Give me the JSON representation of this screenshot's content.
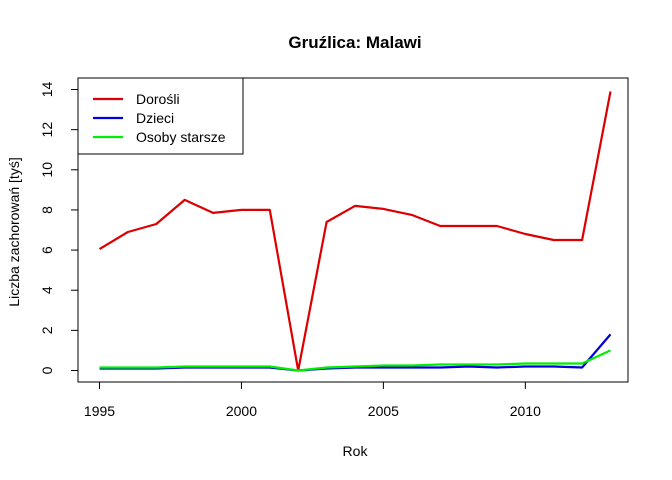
{
  "chart_data": {
    "type": "line",
    "title": "Gruźlica: Malawi",
    "xlabel": "Rok",
    "ylabel": "Liczba zachorowań [tyś]",
    "xlim": [
      1995,
      2013
    ],
    "ylim": [
      0,
      14
    ],
    "x_ticks": [
      1995,
      2000,
      2005,
      2010
    ],
    "y_ticks": [
      0,
      2,
      4,
      6,
      8,
      10,
      12,
      14
    ],
    "grid": false,
    "legend_position": "top-left",
    "x": [
      1995,
      1996,
      1997,
      1998,
      1999,
      2000,
      2001,
      2002,
      2003,
      2004,
      2005,
      2006,
      2007,
      2008,
      2009,
      2010,
      2011,
      2012,
      2013
    ],
    "series": [
      {
        "name": "Dorośli",
        "color": "#dd0000",
        "values": [
          6.05,
          6.9,
          7.3,
          8.5,
          7.85,
          8.0,
          8.0,
          0.0,
          7.4,
          8.2,
          8.05,
          7.75,
          7.2,
          7.2,
          7.2,
          6.8,
          6.5,
          6.5,
          13.9
        ]
      },
      {
        "name": "Dzieci",
        "color": "#0000dd",
        "values": [
          0.1,
          0.1,
          0.1,
          0.15,
          0.15,
          0.15,
          0.15,
          0.0,
          0.1,
          0.15,
          0.15,
          0.15,
          0.15,
          0.2,
          0.15,
          0.2,
          0.2,
          0.15,
          1.8
        ]
      },
      {
        "name": "Osoby starsze",
        "color": "#00ee00",
        "values": [
          0.15,
          0.15,
          0.15,
          0.2,
          0.2,
          0.2,
          0.2,
          0.0,
          0.15,
          0.2,
          0.25,
          0.25,
          0.3,
          0.3,
          0.3,
          0.35,
          0.35,
          0.35,
          1.0
        ]
      }
    ]
  }
}
